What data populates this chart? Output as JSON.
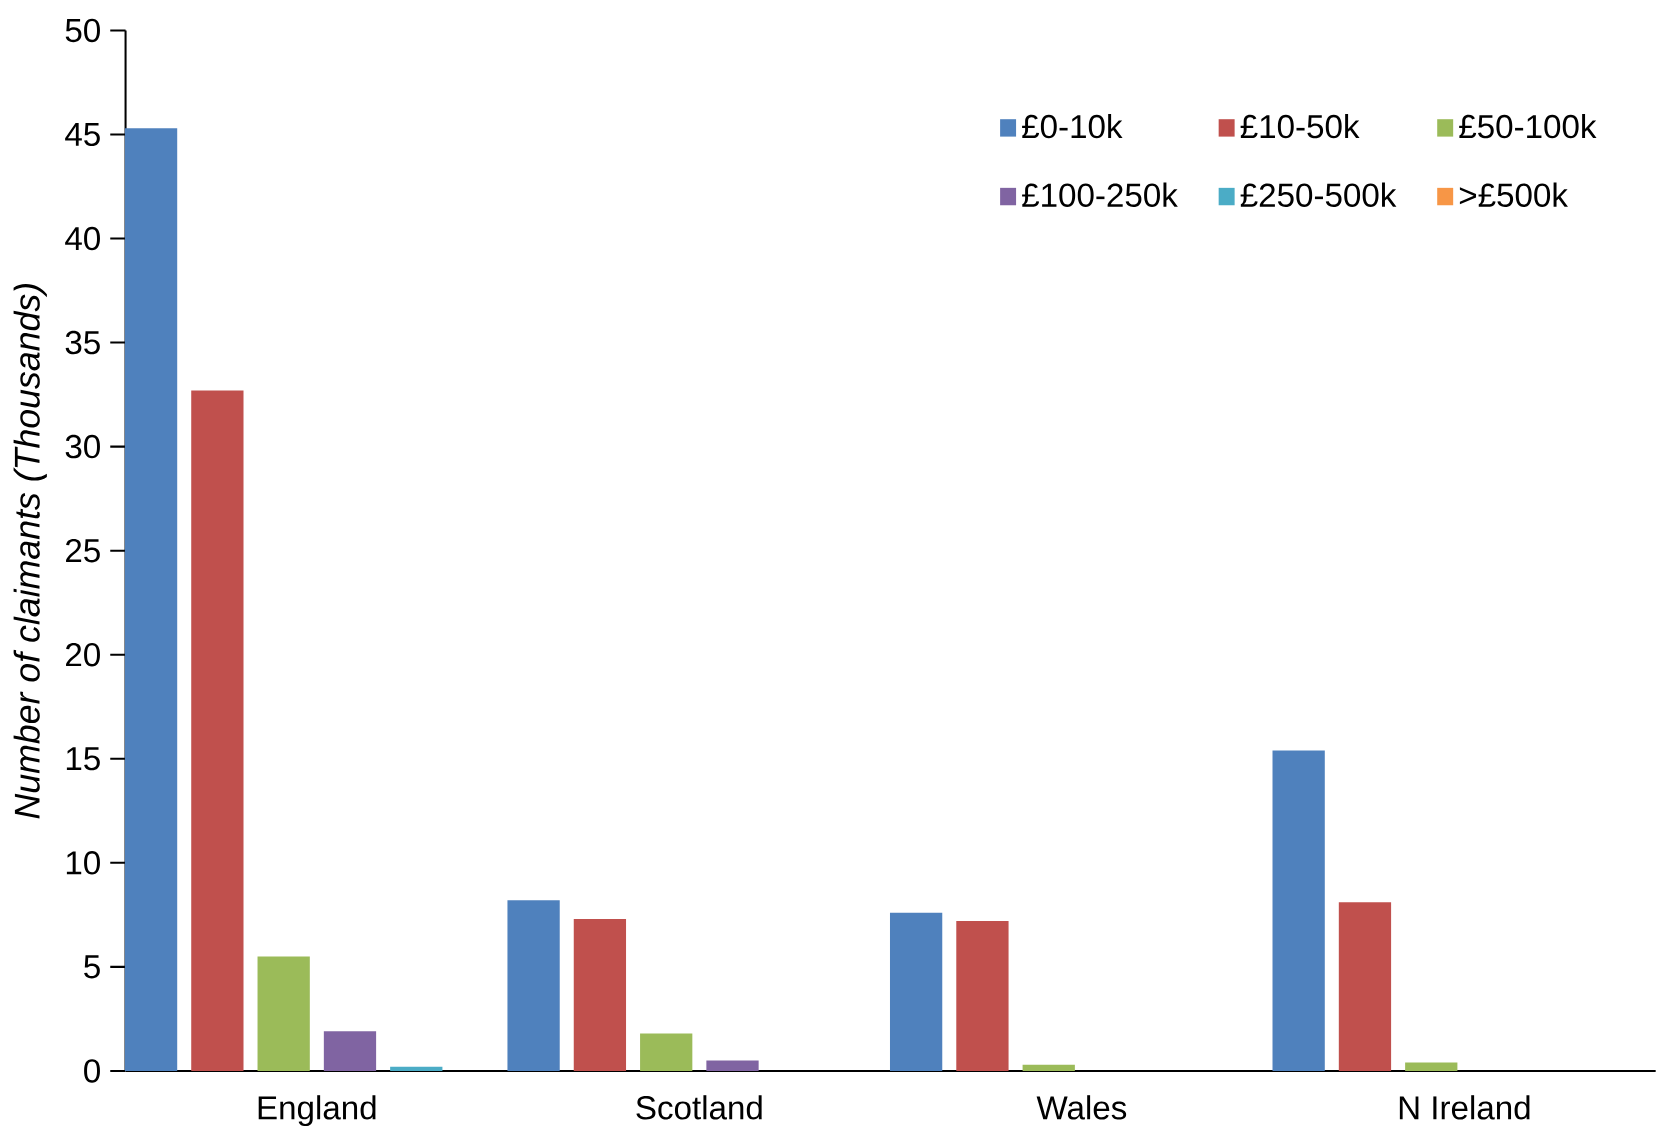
{
  "chart_data": {
    "type": "bar",
    "ylabel": "*Number of claimants (Thousands)*",
    "categories": [
      "England",
      "Scotland",
      "Wales",
      "N Ireland"
    ],
    "series": [
      {
        "name": "£0-10k",
        "color": "#4f81bd",
        "values": [
          45.3,
          8.2,
          7.6,
          15.4
        ]
      },
      {
        "name": "£10-50k",
        "color": "#c0504d",
        "values": [
          32.7,
          7.3,
          7.2,
          8.1
        ]
      },
      {
        "name": "£50-100k",
        "color": "#9bbb59",
        "values": [
          5.5,
          1.8,
          0.3,
          0.4
        ]
      },
      {
        "name": "£100-250k",
        "color": "#8064a2",
        "values": [
          1.9,
          0.5,
          0,
          0
        ]
      },
      {
        "name": "£250-500k",
        "color": "#4bacc6",
        "values": [
          0.2,
          0,
          0,
          0
        ]
      },
      {
        "name": ">£500k",
        "color": "#f79646",
        "values": [
          0,
          0,
          0,
          0
        ]
      }
    ],
    "ylim": [
      0,
      50
    ],
    "yticks": [
      0,
      5,
      10,
      15,
      20,
      25,
      30,
      35,
      40,
      45,
      50
    ],
    "grid": false,
    "legend": "top right"
  }
}
